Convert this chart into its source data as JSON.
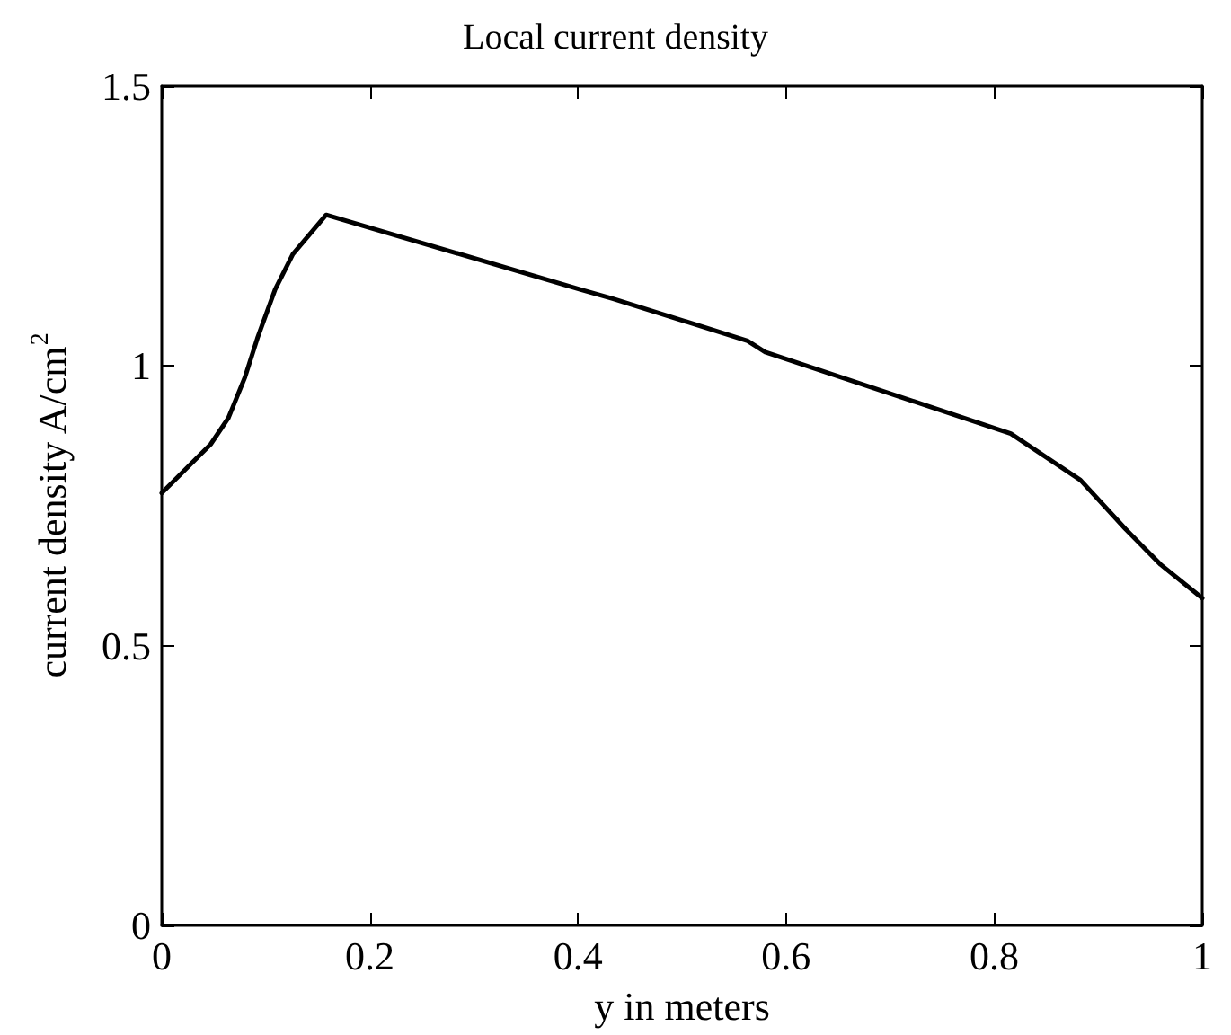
{
  "chart_data": {
    "type": "line",
    "title": "Local current density",
    "xlabel": "y in meters",
    "ylabel": "current density A/cm$^{2}$",
    "series": [
      {
        "color": "#000000",
        "x": [
          0,
          0.047,
          0.064,
          0.08,
          0.092,
          0.109,
          0.126,
          0.158,
          0.402,
          0.434,
          0.563,
          0.58,
          0.816,
          0.883,
          0.926,
          0.96,
          1
        ],
        "values": [
          0.773,
          0.86,
          0.907,
          0.98,
          1.05,
          1.137,
          1.2,
          1.27,
          1.137,
          1.12,
          1.045,
          1.025,
          0.879,
          0.796,
          0.709,
          0.645,
          0.585
        ]
      }
    ],
    "xlim": [
      0,
      1
    ],
    "xticks": [
      0,
      0.2,
      0.4,
      0.6,
      0.8,
      1
    ],
    "ylim": [
      0,
      1.5
    ],
    "yticks": [
      0,
      0.5,
      1,
      1.5
    ],
    "grid": false,
    "marker": "none",
    "line_style": "solid"
  }
}
